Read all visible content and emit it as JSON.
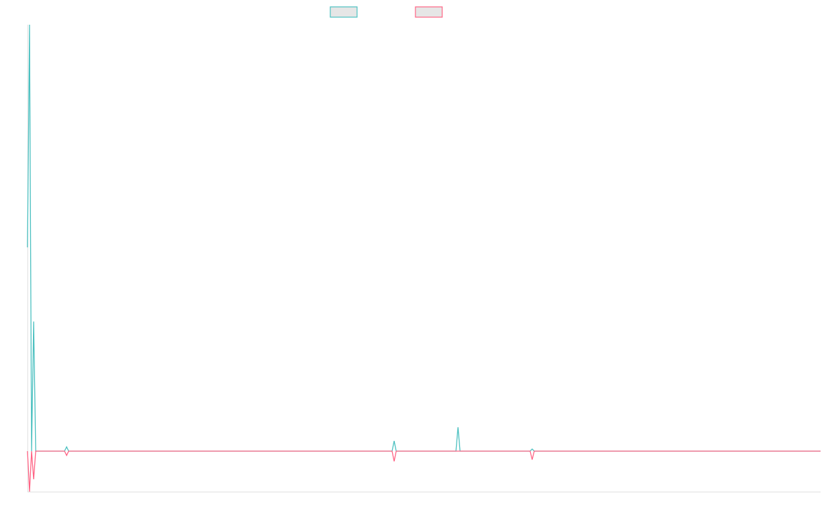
{
  "chart_data": {
    "type": "line",
    "title": "",
    "xlabel": "",
    "ylabel": "",
    "xlim": [
      0,
      385
    ],
    "ylim": [
      -9.5,
      100
    ],
    "grid": false,
    "legend_placement": "top-center",
    "series": [
      {
        "color": "#4bc0c0",
        "x": [
          0,
          1,
          2,
          3,
          4,
          18,
          19,
          20,
          177,
          178,
          179,
          208,
          209,
          210,
          244,
          245,
          246,
          385
        ],
        "y": [
          47.8,
          100,
          0,
          30.4,
          0,
          0,
          1,
          0,
          0,
          2.4,
          0,
          0,
          5.6,
          0,
          0,
          0.5,
          0,
          0
        ]
      },
      {
        "color": "#ff6384",
        "x": [
          0,
          1,
          2,
          3,
          4,
          18,
          19,
          20,
          177,
          178,
          179,
          244,
          245,
          246,
          385
        ],
        "y": [
          0,
          -9.5,
          0,
          -6.6,
          0,
          0,
          -1,
          0,
          0,
          -2.4,
          0,
          0,
          -2,
          0,
          0
        ]
      }
    ]
  }
}
